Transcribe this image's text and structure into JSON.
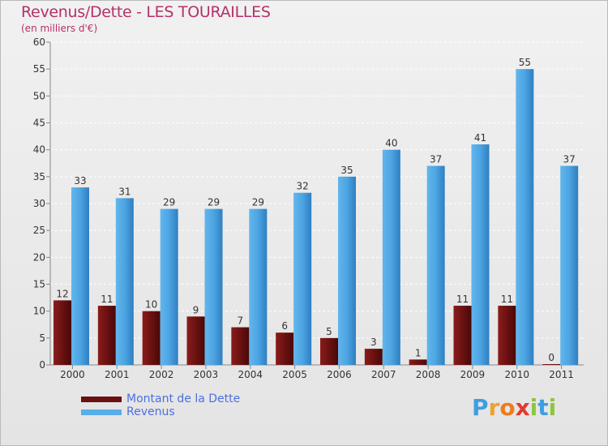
{
  "title": "Revenus/Dette - LES TOURAILLES",
  "subtitle": "(en milliers d'€)",
  "logo": {
    "text": "Proxiti",
    "letters": [
      {
        "ch": "P",
        "color": "#3f9ee0"
      },
      {
        "ch": "r",
        "color": "#f0a030"
      },
      {
        "ch": "o",
        "color": "#ee7c1e"
      },
      {
        "ch": "x",
        "color": "#e23a2e"
      },
      {
        "ch": "i",
        "color": "#8cc63e"
      },
      {
        "ch": "t",
        "color": "#3f9ee0"
      },
      {
        "ch": "i",
        "color": "#8cc63e"
      }
    ]
  },
  "chart_data": {
    "type": "bar",
    "title": "Revenus/Dette - LES TOURAILLES",
    "subtitle": "(en milliers d'€)",
    "categories": [
      "2000",
      "2001",
      "2002",
      "2003",
      "2004",
      "2005",
      "2006",
      "2007",
      "2008",
      "2009",
      "2010",
      "2011"
    ],
    "series": [
      {
        "name": "Montant de la Dette",
        "color": "#7a1414",
        "values": [
          12,
          11,
          10,
          9,
          7,
          6,
          5,
          3,
          1,
          11,
          11,
          0
        ]
      },
      {
        "name": "Revenus",
        "color": "#58aee8",
        "values": [
          33,
          31,
          29,
          29,
          29,
          32,
          35,
          40,
          37,
          41,
          55,
          37
        ]
      }
    ],
    "ylim": [
      0,
      60
    ],
    "yticks": [
      0,
      5,
      10,
      15,
      20,
      25,
      30,
      35,
      40,
      45,
      50,
      55,
      60
    ],
    "grid": true,
    "legend_position": "bottom-left"
  }
}
